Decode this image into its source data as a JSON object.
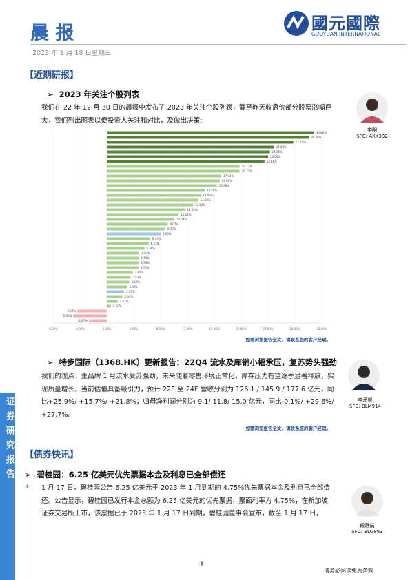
{
  "header": {
    "title": "晨 报",
    "date": "2023 年 1 月 18 日星期三",
    "logo_cn": "國元國際",
    "logo_en": "GUOYUAN INTERNATIONAL"
  },
  "sidebar": "证券研究报告",
  "section1": {
    "heading": "【近期研报】",
    "item1": {
      "title": "2023 年关注个股列表",
      "text": "我们在 22 年 12 月 30 日的晨报中发布了 2023 年关注个股列表，截至昨天收盘价部分股票涨幅巨大，我们列出图表以便投资人关注和对比，及做出决策:",
      "analyst": "李明",
      "sfc": "SFC: AXK332",
      "note": "如需浏览报告全文，请联系您的客户经理。"
    },
    "item2": {
      "title": "特步国际（1368.HK）更新报告：22Q4 流水及库销小幅承压，复苏势头强劲",
      "text": "我们的观点：主品牌 1 月流水复苏强劲，未来随着零售环境正常化，库存压力有望逐季显著释放，实现质量增长，当前估值具备吸引力，预计 22E 至 24E 营收分别为 126.1 / 145.9 / 177.6 亿元，同比+25.9%/ +15.7%/ +21.8%；归母净利润分别为 9.1/ 11.8/ 15.0 亿元，同比-0.1%/ +29.6%/ +27.7%。",
      "analyst": "李承锟",
      "sfc": "SFC: BLM914",
      "note": "如需浏览报告全文，请联系您的客户经理。"
    }
  },
  "section2": {
    "heading": "【债券快讯】",
    "item1": {
      "title": "碧桂园：6.25 亿美元优先票据本金及利息已全部偿还",
      "text": "1 月 17 日，碧桂园公告 6.25 亿美元于 2023 年 1 月到期的 4.75%优先票据本金及利息已全部偿还。公告显示，碧桂园已发行本金总额为 6.25 亿美元的优先票据，票面利率为 4.75%，在新加坡证券交易所上市，该票据已于 2023 年 1 月 17 日到期，碧桂园董事会宣布，截至 1 月 17 日，",
      "analyst": "段静娟",
      "sfc": "SFC: BLG863"
    }
  },
  "footer": {
    "page": "1",
    "disclaimer": "请务必阅读免责条款"
  },
  "chart_data": {
    "type": "hbar",
    "categories": [
      null,
      null,
      null,
      null,
      null,
      null,
      null,
      null,
      null,
      null,
      null,
      null,
      null,
      null,
      null,
      null,
      null,
      null,
      null,
      null,
      null,
      null,
      null,
      null,
      null,
      null,
      null,
      null,
      null,
      null,
      null,
      null,
      null,
      null,
      null,
      null,
      null,
      null,
      null,
      null
    ],
    "values": [
      30.86,
      30.09,
      27.75,
      24.88,
      24.26,
      24.0,
      23.46,
      19.77,
      19.77,
      17.04,
      16.8,
      16.38,
      14.56,
      14.0,
      13.6,
      12.82,
      11.64,
      10.68,
      10.04,
      9.07,
      8.72,
      8.0,
      6.45,
      6.23,
      5.59,
      4.84,
      4.74,
      4.73,
      4.7,
      3.88,
      3.52,
      3.32,
      3.0,
      2.57,
      2.3,
      1.61,
      0.6,
      -4.39,
      -5.0,
      -2.67
    ],
    "value_labels": [
      "30.86%",
      "30.09%",
      "27.75%",
      "24.88%",
      "24.26%",
      "24.00%",
      "23.46%",
      "19.77%",
      "19.77%",
      "17.04%",
      "16.80%",
      "16.38%",
      "14.56%",
      "14.00%",
      "13.60%",
      "12.82%",
      "11.64%",
      "10.68%",
      "10.04%",
      "9.07%",
      "8.72%",
      "8.00%",
      "6.45%",
      "6.23%",
      "5.59%",
      "4.84%",
      "4.74%",
      "4.73%",
      "4.70%",
      "3.88%",
      "3.52%",
      "3.32%",
      "3.00%",
      "2.57%",
      "2.30%",
      "1.61%",
      "0.60%",
      "-4.39%",
      "-5.00%",
      "-2.67%"
    ],
    "colors": [
      "#548235",
      "#548235",
      "#548235",
      "#548235",
      "#548235",
      "#548235",
      "#548235",
      "#a9d18e",
      "#a9d18e",
      "#a9d18e",
      "#a9d18e",
      "#a9d18e",
      "#a9d18e",
      "#a9d18e",
      "#a9d18e",
      "#a9d18e",
      "#a9d18e",
      "#a9d18e",
      "#a9d18e",
      "#a9d18e",
      "#a9d18e",
      "#9dc3e6",
      "#a9d18e",
      "#a9d18e",
      "#a9d18e",
      "#a9d18e",
      "#a9d18e",
      "#a9d18e",
      "#a9d18e",
      "#a9d18e",
      "#a9d18e",
      "#a9d18e",
      "#a9d18e",
      "#9dc3e6",
      "#a9d18e",
      "#a9d18e",
      "#a9d18e",
      "#f4b0b0",
      "#f4b0b0",
      "#f4b0b0"
    ],
    "xlim": [
      -8,
      32
    ],
    "xticks": [
      {
        "value": -8,
        "label": "-8.00%"
      },
      {
        "value": -4,
        "label": "-4.00%"
      },
      {
        "value": 0,
        "label": "0.00%"
      },
      {
        "value": 4,
        "label": "4.00%"
      },
      {
        "value": 8,
        "label": "8.00%"
      },
      {
        "value": 12,
        "label": "12.00%"
      },
      {
        "value": 16,
        "label": "16.00%"
      },
      {
        "value": 20,
        "label": "20.00%"
      },
      {
        "value": 24,
        "label": "24.00%"
      },
      {
        "value": 28,
        "label": "28.00%"
      },
      {
        "value": 32,
        "label": "32.00%"
      }
    ],
    "grid": true
  }
}
